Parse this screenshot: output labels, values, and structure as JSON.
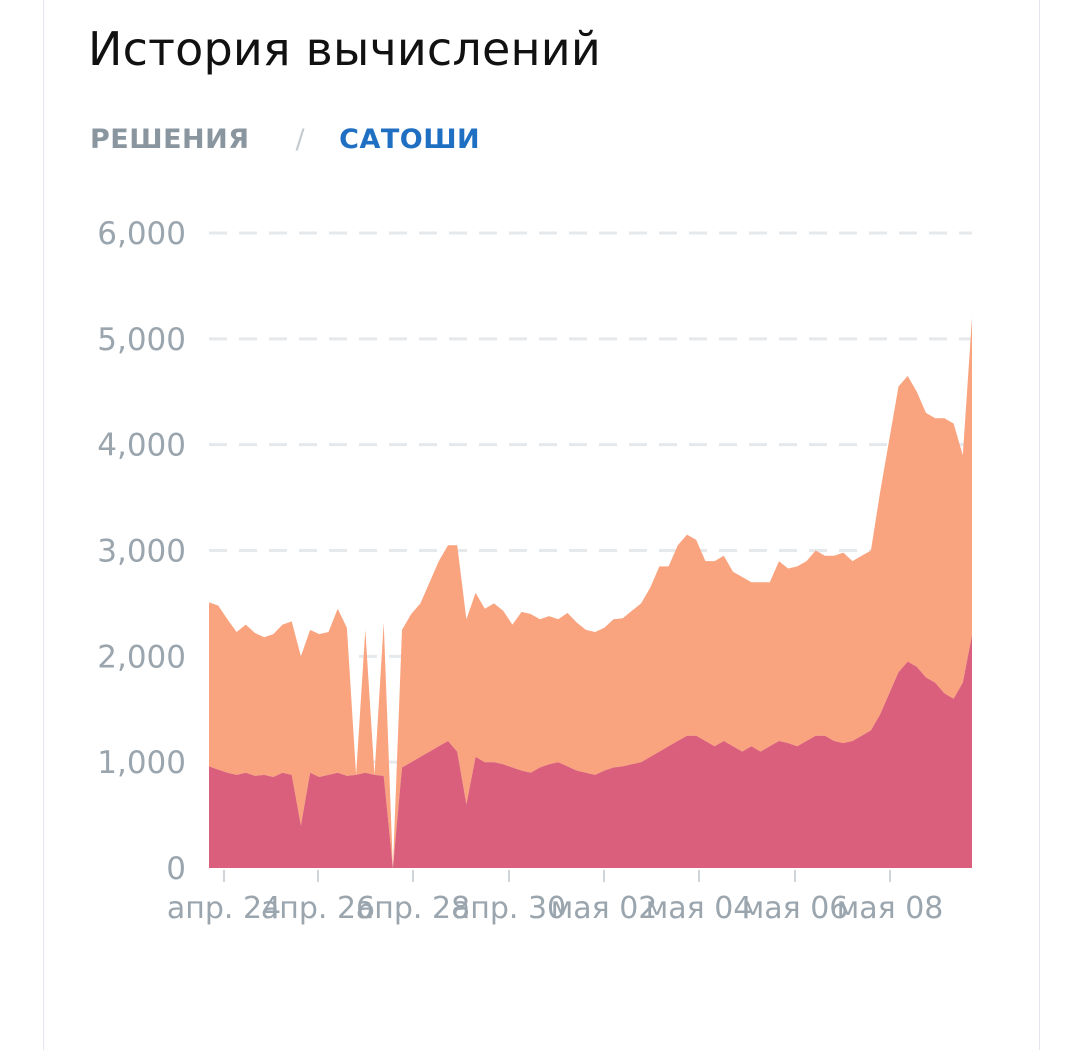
{
  "title": "История вычислений",
  "tabs": {
    "solutions": "РЕШЕНИЯ",
    "separator": "/",
    "satoshi": "САТОШИ",
    "active": "САТОШИ"
  },
  "colors": {
    "upper_series": "#f9a47e",
    "lower_series": "#d95f7c",
    "grid": "#e6e9ec",
    "tick_label": "#9aa5ae",
    "active_tab": "#1f6fc3"
  },
  "chart_data": {
    "type": "area",
    "stacked": true,
    "ylim": [
      0,
      6000
    ],
    "yticks": [
      0,
      1000,
      2000,
      3000,
      4000,
      5000,
      6000
    ],
    "ytick_labels": [
      "0",
      "1,000",
      "2,000",
      "3,000",
      "4,000",
      "5,000",
      "6,000"
    ],
    "xtick_labels": [
      "апр. 24",
      "апр. 26",
      "апр. 28",
      "апр. 30",
      "мая 02",
      "мая 04",
      "мая 06",
      "мая 08"
    ],
    "grid": true,
    "series": [
      {
        "color": "#d95f7c",
        "values": [
          960,
          930,
          900,
          880,
          900,
          870,
          880,
          860,
          900,
          880,
          400,
          900,
          860,
          880,
          900,
          870,
          880,
          900,
          880,
          870,
          0,
          950,
          1000,
          1050,
          1100,
          1150,
          1200,
          1100,
          600,
          1050,
          1000,
          1000,
          980,
          950,
          920,
          900,
          950,
          980,
          1000,
          960,
          920,
          900,
          880,
          920,
          950,
          960,
          980,
          1000,
          1050,
          1100,
          1150,
          1200,
          1250,
          1250,
          1200,
          1150,
          1200,
          1150,
          1100,
          1150,
          1100,
          1150,
          1200,
          1180,
          1150,
          1200,
          1250,
          1250,
          1200,
          1180,
          1200,
          1250,
          1300,
          1450,
          1650,
          1850,
          1950,
          1900,
          1800,
          1750,
          1650,
          1600,
          1750,
          2200
        ]
      },
      {
        "color": "#f9a47e",
        "values": [
          1550,
          1550,
          1450,
          1350,
          1400,
          1350,
          1300,
          1350,
          1400,
          1450,
          1600,
          1350,
          1350,
          1350,
          1550,
          1400,
          0,
          1350,
          0,
          1450,
          0,
          1300,
          1400,
          1450,
          1600,
          1750,
          1850,
          1950,
          1750,
          1550,
          1450,
          1500,
          1450,
          1350,
          1500,
          1500,
          1400,
          1400,
          1350,
          1450,
          1400,
          1350,
          1350,
          1350,
          1400,
          1400,
          1450,
          1500,
          1600,
          1750,
          1700,
          1850,
          1900,
          1850,
          1700,
          1750,
          1750,
          1650,
          1650,
          1550,
          1600,
          1550,
          1700,
          1650,
          1700,
          1700,
          1750,
          1700,
          1750,
          1800,
          1700,
          1700,
          1700,
          2100,
          2400,
          2700,
          2700,
          2600,
          2500,
          2500,
          2600,
          2600,
          2150,
          3000
        ]
      }
    ]
  }
}
